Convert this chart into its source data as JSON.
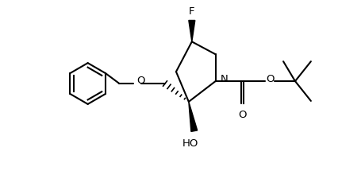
{
  "background": "#ffffff",
  "line_color": "#000000",
  "line_width": 1.5,
  "font_size": 9.5,
  "figsize": [
    4.26,
    2.2
  ],
  "dpi": 100,
  "xlim": [
    0,
    4.26
  ],
  "ylim": [
    0,
    2.2
  ]
}
